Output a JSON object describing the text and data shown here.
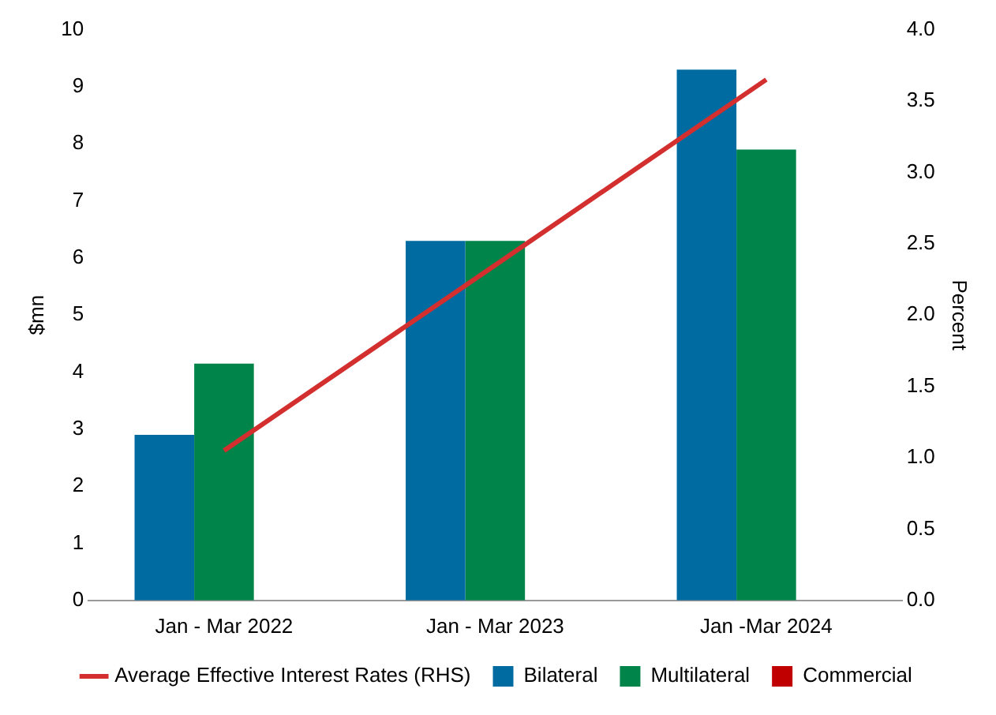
{
  "chart_data": {
    "type": "bar",
    "categories": [
      "Jan - Mar 2022",
      "Jan - Mar 2023",
      "Jan -Mar 2024"
    ],
    "series": [
      {
        "name": "Bilateral",
        "color": "#006ba1",
        "values": [
          2.9,
          6.3,
          9.3
        ]
      },
      {
        "name": "Multilateral",
        "color": "#00844a",
        "values": [
          4.15,
          6.3,
          7.9
        ]
      },
      {
        "name": "Commercial",
        "color": "#c00000",
        "values": [
          0,
          0,
          0
        ]
      },
      {
        "name": "Average Effective Interest Rates (RHS)",
        "type": "line",
        "axis": "y2",
        "color": "#d32f2f",
        "values": [
          1.05,
          2.35,
          3.65
        ]
      }
    ],
    "ylabel": "$mn",
    "y2label": "Percent",
    "ylim": [
      0,
      10
    ],
    "yticks": [
      0,
      1,
      2,
      3,
      4,
      5,
      6,
      7,
      8,
      9,
      10
    ],
    "y2lim": [
      0,
      4
    ],
    "y2ticks": [
      {
        "value": 0,
        "label": "0.0"
      },
      0.5,
      {
        "value": 1,
        "label": "1.0"
      },
      1.5,
      {
        "value": 2,
        "label": "2.0"
      },
      2.5,
      {
        "value": 3,
        "label": "3.0"
      },
      3.5,
      {
        "value": 4,
        "label": "4.0"
      }
    ],
    "grid": false,
    "legend": "bottom",
    "marker": "none"
  }
}
